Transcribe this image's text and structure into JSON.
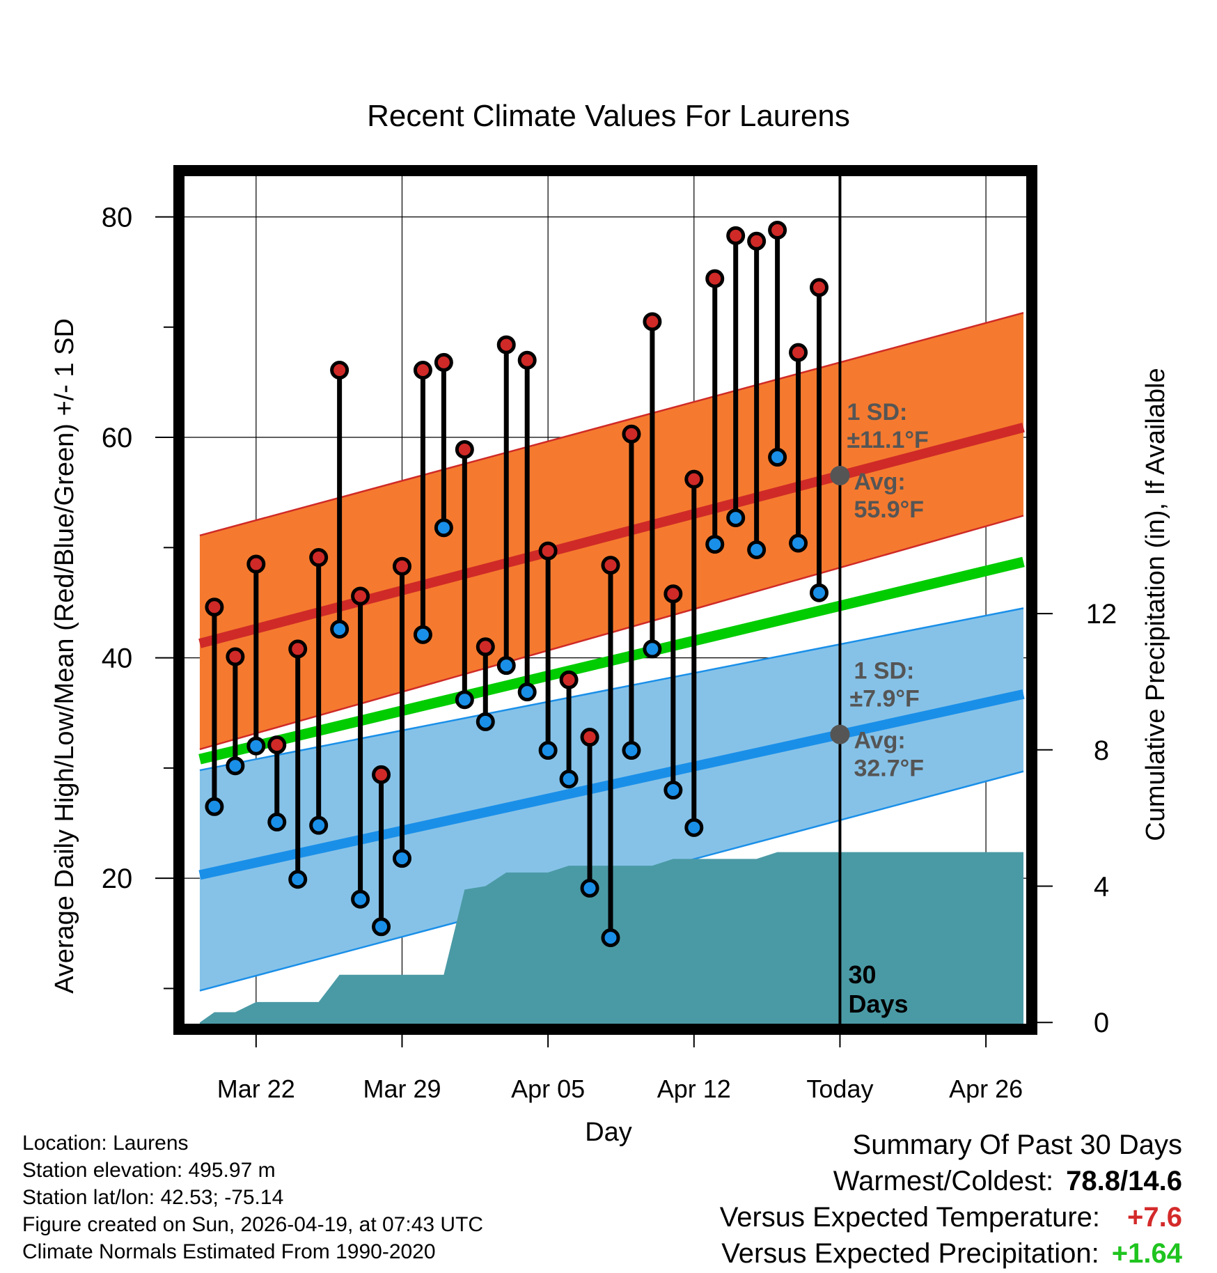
{
  "chart_data": {
    "type": "line",
    "title": "Recent Climate Values For Laurens",
    "xlabel": "Day",
    "ylabel": "Average Daily High/Low/Mean (Red/Blue/Green) +/- 1 SD",
    "y2label": "Cumulative Precipitation (in), If Available",
    "xlim": [
      -3.7,
      37.2
    ],
    "ylim": [
      6.3,
      84.2
    ],
    "y2lim": [
      -0.2,
      25.0
    ],
    "xticks": [
      0,
      7,
      14,
      21,
      28,
      35
    ],
    "xticklabels": [
      "Mar 22",
      "Mar 29",
      "Apr 05",
      "Apr 12",
      "Today",
      "Apr 26"
    ],
    "yticks": [
      20,
      40,
      60,
      80
    ],
    "yminor": [
      10,
      30,
      50,
      70
    ],
    "y2ticks": [
      0,
      4,
      8,
      12
    ],
    "normal_high": {
      "x": [
        -2.7,
        36.8
      ],
      "y": [
        41.3,
        60.9
      ],
      "sd_band": [
        [
          31.7,
          51.1
        ],
        [
          52.9,
          71.3
        ]
      ]
    },
    "normal_low": {
      "x": [
        -2.7,
        36.8
      ],
      "y": [
        20.3,
        36.7
      ],
      "sd_band": [
        [
          9.8,
          29.8
        ],
        [
          29.7,
          44.5
        ]
      ]
    },
    "normal_mean": {
      "x": [
        -2.7,
        36.8
      ],
      "y": [
        30.8,
        48.7
      ]
    },
    "today": {
      "x": 28,
      "label": "30 Days",
      "sd_high": "1 SD:",
      "sd_high_val": "±11.1°F",
      "avg_high": "Avg:",
      "avg_high_val": "55.9°F",
      "high_avg": 55.9,
      "sd_low": "1 SD:",
      "sd_low_val": "±7.9°F",
      "avg_low": "Avg:",
      "avg_low_val": "32.7°F",
      "low_avg": 32.7
    },
    "days": [
      -2,
      -1,
      0,
      1,
      2,
      3,
      4,
      5,
      6,
      7,
      8,
      9,
      10,
      11,
      12,
      13,
      14,
      15,
      16,
      17,
      18,
      19,
      20,
      21,
      22,
      23,
      24,
      25,
      26,
      27
    ],
    "highs": [
      44.6,
      40.1,
      48.5,
      32.1,
      40.8,
      49.1,
      66.1,
      45.6,
      29.4,
      48.3,
      66.1,
      66.8,
      58.9,
      41.0,
      68.4,
      67.0,
      49.7,
      38.0,
      32.8,
      48.4,
      60.3,
      70.5,
      45.8,
      56.2,
      74.4,
      78.3,
      77.8,
      78.8,
      67.7,
      73.6
    ],
    "lows": [
      26.5,
      30.2,
      32.0,
      25.1,
      19.9,
      24.8,
      42.6,
      18.1,
      15.6,
      21.8,
      42.1,
      51.8,
      36.2,
      34.2,
      39.3,
      36.9,
      31.6,
      29.0,
      19.1,
      14.6,
      31.6,
      40.8,
      28.0,
      24.6,
      50.3,
      52.7,
      49.8,
      58.2,
      50.4,
      45.9
    ],
    "precip_cum": {
      "x": [
        -2.7,
        -2.0,
        -1.0,
        0.0,
        1.0,
        2.0,
        3.0,
        4.0,
        5.0,
        6.0,
        7.0,
        8.0,
        9.0,
        10.0,
        11.0,
        12.0,
        13.0,
        14.0,
        15.0,
        16.0,
        17.0,
        18.0,
        19.0,
        20.0,
        21.0,
        22.0,
        23.0,
        24.0,
        25.0,
        26.0,
        27.0,
        28.0,
        36.8
      ],
      "y": [
        0.0,
        0.3,
        0.3,
        0.6,
        0.6,
        0.6,
        0.6,
        1.4,
        1.4,
        1.4,
        1.4,
        1.4,
        1.4,
        3.9,
        4.0,
        4.4,
        4.4,
        4.4,
        4.6,
        4.6,
        4.6,
        4.6,
        4.6,
        4.8,
        4.8,
        4.8,
        4.8,
        4.8,
        5.0,
        5.0,
        5.0,
        5.0,
        5.0
      ]
    },
    "colors": {
      "high_band": "#f57a2f",
      "high_line": "#cf2a27",
      "low_band": "#86c2e8",
      "low_line": "#1a8fe8",
      "mean_line": "#00cc00",
      "precip": "#4a9aa5",
      "high_dot": "#cf2a27",
      "low_dot": "#1a8fe8",
      "annot": "#555555"
    }
  },
  "footer": {
    "location": "Location: Laurens",
    "elevation": "Station elevation: 495.97 m",
    "latlon": "Station lat/lon: 42.53; -75.14",
    "created": "Figure created on Sun, 2026-04-19, at 07:43 UTC",
    "normals": "Climate Normals Estimated From 1990-2020"
  },
  "summary": {
    "heading": "Summary Of Past 30 Days",
    "warm_cold_label": "Warmest/Coldest:",
    "warm_cold_value": "78.8/14.6",
    "temp_label": "Versus Expected Temperature:",
    "temp_value": "+7.6",
    "precip_label": "Versus Expected Precipitation:",
    "precip_value": "+1.64"
  }
}
